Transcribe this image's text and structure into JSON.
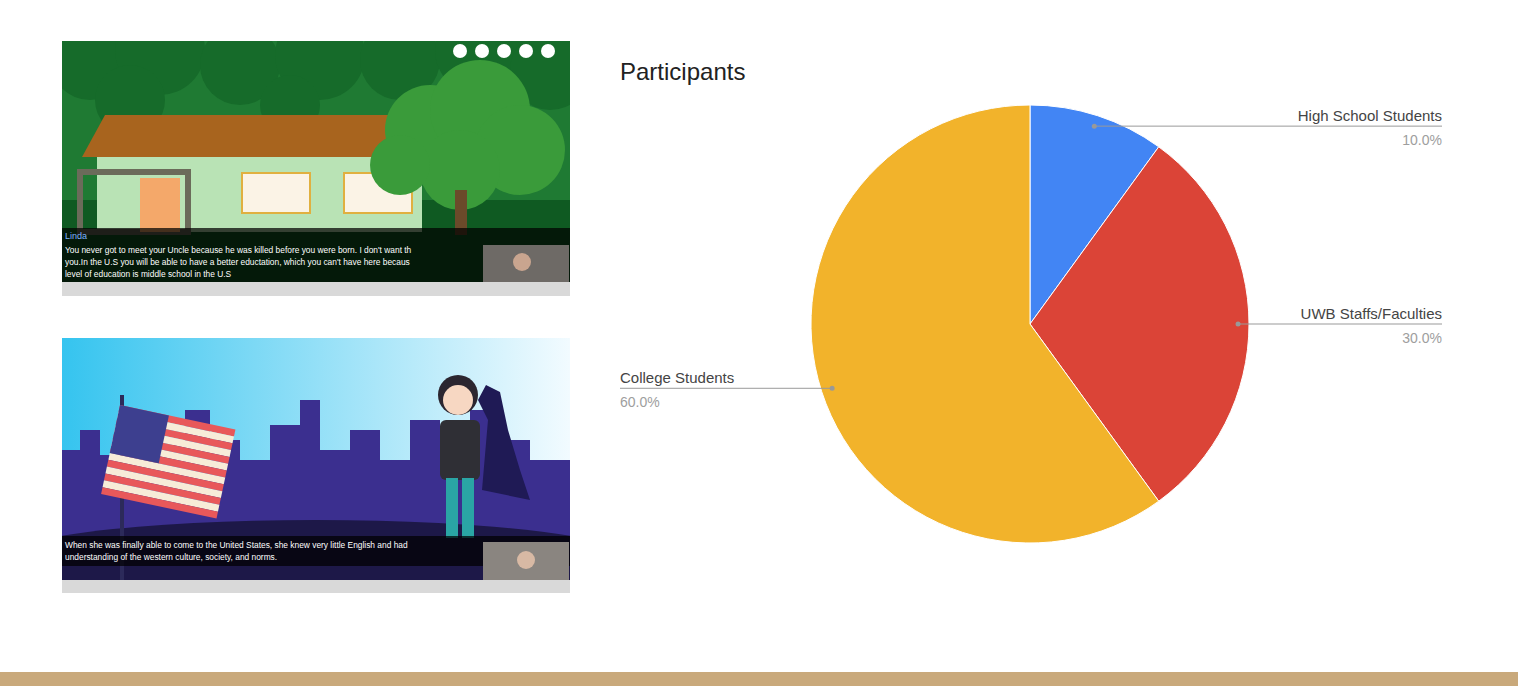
{
  "chart_data": {
    "type": "pie",
    "title": "Participants",
    "categories": [
      "High School Students",
      "UWB Staffs/Faculties",
      "College Students"
    ],
    "values": [
      10,
      30,
      60
    ],
    "value_labels": [
      "10.0%",
      "30.0%",
      "60.0%"
    ],
    "colors": [
      "#4285f4",
      "#db4437",
      "#f2b32b"
    ],
    "data_labels": true
  },
  "screenshots": [
    {
      "speaker": "Linda",
      "caption_lines": [
        "You never got to meet your Uncle because he was killed before you were born. I don't want th",
        "you.In the U.S you will be able to have a better eductation, which you can't have here becaus",
        "level of education is middle school in the U.S"
      ]
    },
    {
      "caption_lines": [
        "When she was finally able to come to the United States, she knew very little English and had",
        "understanding of the western culture, society, and norms."
      ]
    }
  ]
}
